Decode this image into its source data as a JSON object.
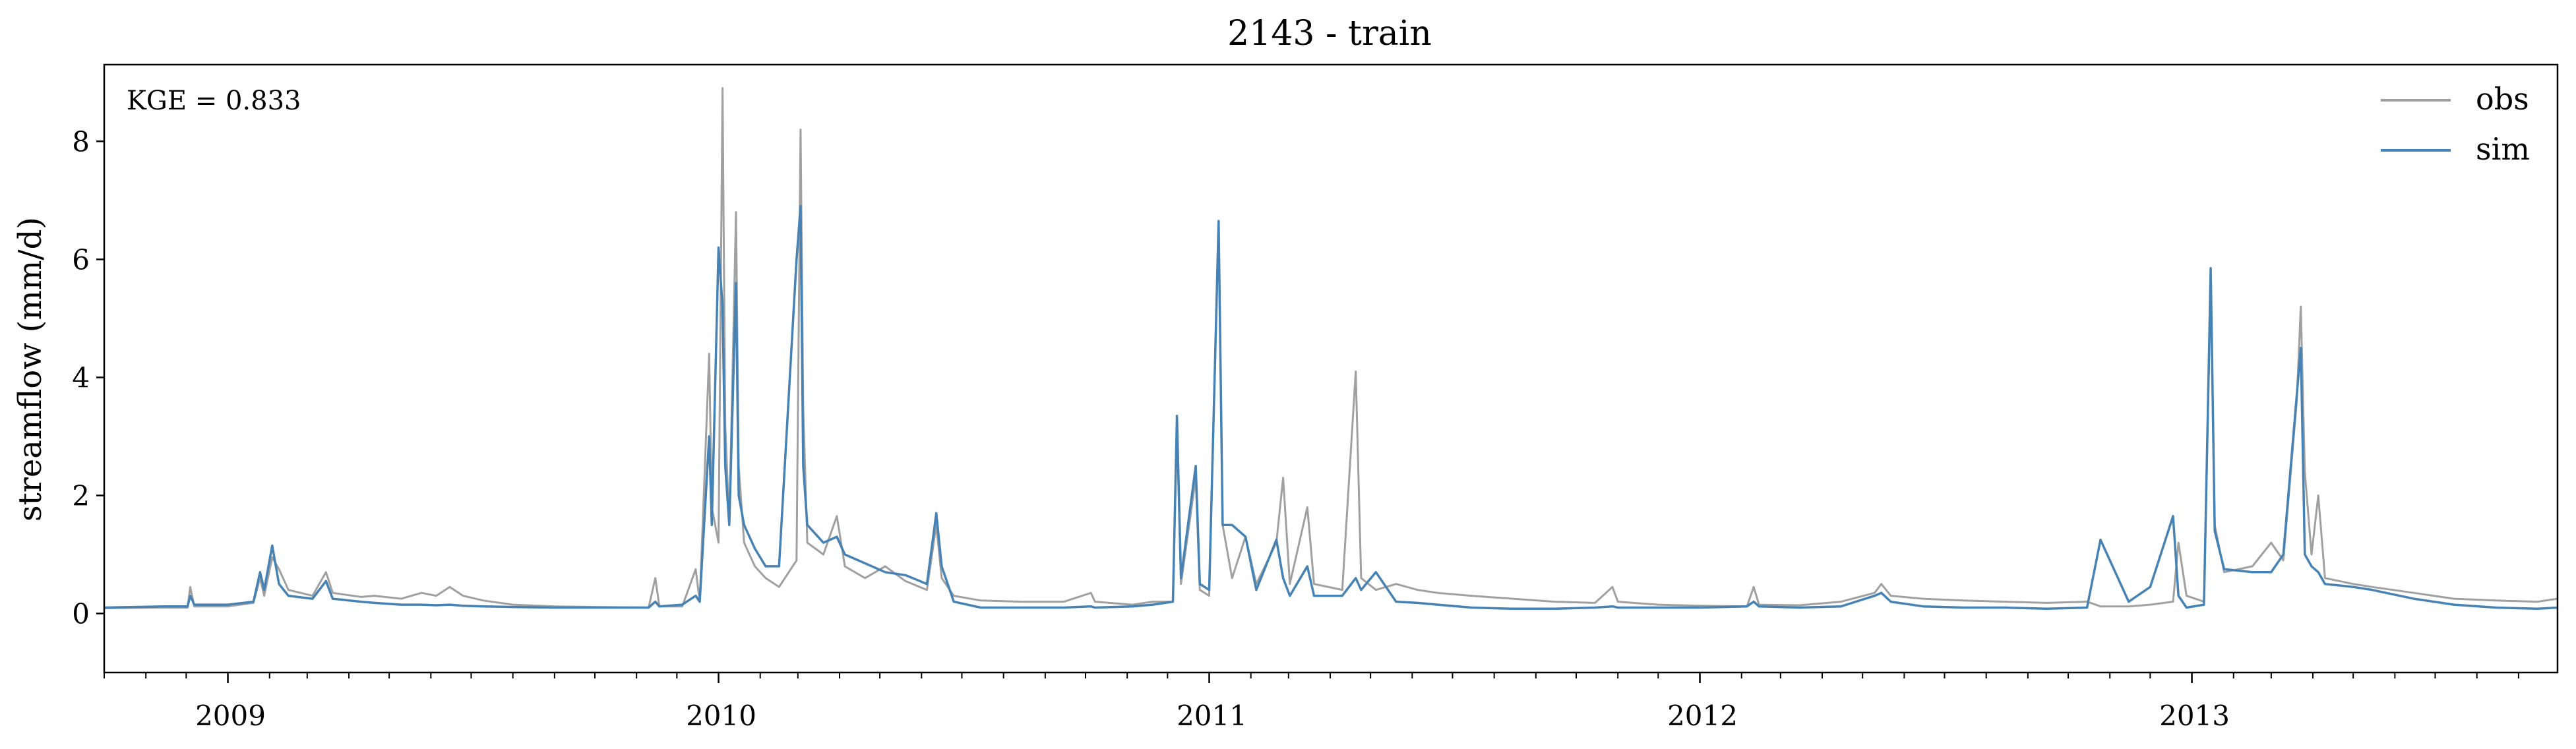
{
  "chart_data": {
    "type": "line",
    "title": "2143 - train",
    "xlabel": "",
    "ylabel": "streamflow (mm/d)",
    "annotation": "KGE = 0.833",
    "xlim": [
      "2008-10-01",
      "2013-09-30"
    ],
    "ylim": [
      -1,
      9.3
    ],
    "xticks": [
      {
        "date": "2009-01-01",
        "label": "2009"
      },
      {
        "date": "2010-01-01",
        "label": "2010"
      },
      {
        "date": "2011-01-01",
        "label": "2011"
      },
      {
        "date": "2012-01-01",
        "label": "2012"
      },
      {
        "date": "2013-01-01",
        "label": "2013"
      }
    ],
    "yticks": [
      0,
      2,
      4,
      6,
      8
    ],
    "grid": false,
    "legend_position": "top-right",
    "series": [
      {
        "name": "obs",
        "color": "#a0a0a0",
        "points": [
          [
            "2008-10-01",
            0.09
          ],
          [
            "2008-11-15",
            0.1
          ],
          [
            "2008-12-02",
            0.1
          ],
          [
            "2008-12-04",
            0.45
          ],
          [
            "2008-12-07",
            0.12
          ],
          [
            "2009-01-01",
            0.12
          ],
          [
            "2009-01-20",
            0.18
          ],
          [
            "2009-01-25",
            0.6
          ],
          [
            "2009-01-28",
            0.3
          ],
          [
            "2009-02-03",
            0.95
          ],
          [
            "2009-02-08",
            0.75
          ],
          [
            "2009-02-15",
            0.4
          ],
          [
            "2009-03-05",
            0.3
          ],
          [
            "2009-03-15",
            0.7
          ],
          [
            "2009-03-20",
            0.35
          ],
          [
            "2009-04-10",
            0.28
          ],
          [
            "2009-04-20",
            0.3
          ],
          [
            "2009-05-10",
            0.25
          ],
          [
            "2009-05-25",
            0.35
          ],
          [
            "2009-06-05",
            0.3
          ],
          [
            "2009-06-15",
            0.45
          ],
          [
            "2009-06-25",
            0.3
          ],
          [
            "2009-07-10",
            0.22
          ],
          [
            "2009-08-01",
            0.15
          ],
          [
            "2009-09-01",
            0.12
          ],
          [
            "2009-10-01",
            0.11
          ],
          [
            "2009-11-10",
            0.1
          ],
          [
            "2009-11-15",
            0.6
          ],
          [
            "2009-11-18",
            0.12
          ],
          [
            "2009-12-05",
            0.12
          ],
          [
            "2009-12-15",
            0.75
          ],
          [
            "2009-12-18",
            0.2
          ],
          [
            "2009-12-25",
            4.4
          ],
          [
            "2009-12-27",
            1.8
          ],
          [
            "2010-01-01",
            1.2
          ],
          [
            "2010-01-04",
            8.9
          ],
          [
            "2010-01-06",
            3.2
          ],
          [
            "2010-01-09",
            1.5
          ],
          [
            "2010-01-14",
            6.8
          ],
          [
            "2010-01-16",
            2.5
          ],
          [
            "2010-01-20",
            1.2
          ],
          [
            "2010-01-28",
            0.8
          ],
          [
            "2010-02-05",
            0.6
          ],
          [
            "2010-02-15",
            0.45
          ],
          [
            "2010-02-28",
            0.9
          ],
          [
            "2010-03-03",
            8.2
          ],
          [
            "2010-03-05",
            3.5
          ],
          [
            "2010-03-08",
            1.2
          ],
          [
            "2010-03-20",
            1.0
          ],
          [
            "2010-03-30",
            1.65
          ],
          [
            "2010-04-05",
            0.8
          ],
          [
            "2010-04-20",
            0.6
          ],
          [
            "2010-05-05",
            0.8
          ],
          [
            "2010-05-20",
            0.55
          ],
          [
            "2010-06-05",
            0.4
          ],
          [
            "2010-06-12",
            1.5
          ],
          [
            "2010-06-16",
            0.6
          ],
          [
            "2010-06-25",
            0.3
          ],
          [
            "2010-07-15",
            0.22
          ],
          [
            "2010-08-15",
            0.2
          ],
          [
            "2010-09-15",
            0.2
          ],
          [
            "2010-10-05",
            0.35
          ],
          [
            "2010-10-08",
            0.2
          ],
          [
            "2010-11-05",
            0.15
          ],
          [
            "2010-11-20",
            0.2
          ],
          [
            "2010-12-05",
            0.2
          ],
          [
            "2010-12-08",
            3.2
          ],
          [
            "2010-12-11",
            0.5
          ],
          [
            "2010-12-22",
            2.3
          ],
          [
            "2010-12-25",
            0.4
          ],
          [
            "2011-01-01",
            0.3
          ],
          [
            "2011-01-08",
            6.6
          ],
          [
            "2011-01-11",
            1.5
          ],
          [
            "2011-01-18",
            0.6
          ],
          [
            "2011-01-28",
            1.3
          ],
          [
            "2011-02-05",
            0.5
          ],
          [
            "2011-02-20",
            1.2
          ],
          [
            "2011-02-25",
            2.3
          ],
          [
            "2011-03-02",
            0.5
          ],
          [
            "2011-03-15",
            1.8
          ],
          [
            "2011-03-20",
            0.5
          ],
          [
            "2011-04-10",
            0.4
          ],
          [
            "2011-04-20",
            4.1
          ],
          [
            "2011-04-24",
            0.6
          ],
          [
            "2011-05-05",
            0.4
          ],
          [
            "2011-05-20",
            0.5
          ],
          [
            "2011-06-05",
            0.4
          ],
          [
            "2011-06-20",
            0.35
          ],
          [
            "2011-07-15",
            0.3
          ],
          [
            "2011-08-15",
            0.25
          ],
          [
            "2011-09-15",
            0.2
          ],
          [
            "2011-10-15",
            0.18
          ],
          [
            "2011-10-28",
            0.45
          ],
          [
            "2011-11-01",
            0.2
          ],
          [
            "2011-12-01",
            0.15
          ],
          [
            "2012-01-01",
            0.13
          ],
          [
            "2012-02-05",
            0.12
          ],
          [
            "2012-02-10",
            0.45
          ],
          [
            "2012-02-14",
            0.15
          ],
          [
            "2012-03-15",
            0.14
          ],
          [
            "2012-04-15",
            0.2
          ],
          [
            "2012-05-10",
            0.35
          ],
          [
            "2012-05-15",
            0.5
          ],
          [
            "2012-05-22",
            0.3
          ],
          [
            "2012-06-15",
            0.25
          ],
          [
            "2012-07-15",
            0.22
          ],
          [
            "2012-08-15",
            0.2
          ],
          [
            "2012-09-15",
            0.18
          ],
          [
            "2012-10-15",
            0.2
          ],
          [
            "2012-10-25",
            0.12
          ],
          [
            "2012-11-15",
            0.12
          ],
          [
            "2012-12-01",
            0.15
          ],
          [
            "2012-12-18",
            0.2
          ],
          [
            "2012-12-22",
            1.2
          ],
          [
            "2012-12-28",
            0.3
          ],
          [
            "2013-01-10",
            0.2
          ],
          [
            "2013-01-15",
            5.6
          ],
          [
            "2013-01-18",
            1.5
          ],
          [
            "2013-01-25",
            0.7
          ],
          [
            "2013-02-15",
            0.8
          ],
          [
            "2013-03-01",
            1.2
          ],
          [
            "2013-03-10",
            0.9
          ],
          [
            "2013-03-20",
            3.6
          ],
          [
            "2013-03-23",
            5.2
          ],
          [
            "2013-03-26",
            2.4
          ],
          [
            "2013-03-31",
            1.0
          ],
          [
            "2013-04-05",
            2.0
          ],
          [
            "2013-04-10",
            0.6
          ],
          [
            "2013-05-01",
            0.5
          ],
          [
            "2013-05-15",
            0.45
          ],
          [
            "2013-06-15",
            0.35
          ],
          [
            "2013-07-15",
            0.25
          ],
          [
            "2013-08-15",
            0.22
          ],
          [
            "2013-09-15",
            0.2
          ],
          [
            "2013-09-30",
            0.25
          ]
        ]
      },
      {
        "name": "sim",
        "color": "#4682b4",
        "points": [
          [
            "2008-10-01",
            0.1
          ],
          [
            "2008-11-15",
            0.12
          ],
          [
            "2008-12-02",
            0.12
          ],
          [
            "2008-12-04",
            0.3
          ],
          [
            "2008-12-07",
            0.15
          ],
          [
            "2009-01-01",
            0.15
          ],
          [
            "2009-01-20",
            0.2
          ],
          [
            "2009-01-25",
            0.7
          ],
          [
            "2009-01-28",
            0.4
          ],
          [
            "2009-02-03",
            1.15
          ],
          [
            "2009-02-08",
            0.5
          ],
          [
            "2009-02-15",
            0.3
          ],
          [
            "2009-03-05",
            0.25
          ],
          [
            "2009-03-15",
            0.55
          ],
          [
            "2009-03-20",
            0.25
          ],
          [
            "2009-04-10",
            0.2
          ],
          [
            "2009-04-20",
            0.18
          ],
          [
            "2009-05-10",
            0.15
          ],
          [
            "2009-05-25",
            0.15
          ],
          [
            "2009-06-05",
            0.14
          ],
          [
            "2009-06-15",
            0.15
          ],
          [
            "2009-06-25",
            0.13
          ],
          [
            "2009-07-10",
            0.12
          ],
          [
            "2009-08-01",
            0.11
          ],
          [
            "2009-09-01",
            0.1
          ],
          [
            "2009-10-01",
            0.1
          ],
          [
            "2009-11-10",
            0.1
          ],
          [
            "2009-11-15",
            0.2
          ],
          [
            "2009-11-18",
            0.12
          ],
          [
            "2009-12-05",
            0.15
          ],
          [
            "2009-12-15",
            0.3
          ],
          [
            "2009-12-18",
            0.2
          ],
          [
            "2009-12-25",
            3.0
          ],
          [
            "2009-12-27",
            1.5
          ],
          [
            "2010-01-01",
            6.2
          ],
          [
            "2010-01-04",
            5.2
          ],
          [
            "2010-01-06",
            2.5
          ],
          [
            "2010-01-09",
            1.5
          ],
          [
            "2010-01-14",
            5.6
          ],
          [
            "2010-01-16",
            2.0
          ],
          [
            "2010-01-20",
            1.5
          ],
          [
            "2010-01-28",
            1.1
          ],
          [
            "2010-02-05",
            0.8
          ],
          [
            "2010-02-15",
            0.8
          ],
          [
            "2010-02-28",
            6.0
          ],
          [
            "2010-03-03",
            6.9
          ],
          [
            "2010-03-05",
            2.5
          ],
          [
            "2010-03-08",
            1.5
          ],
          [
            "2010-03-20",
            1.2
          ],
          [
            "2010-03-30",
            1.3
          ],
          [
            "2010-04-05",
            1.0
          ],
          [
            "2010-04-20",
            0.85
          ],
          [
            "2010-05-05",
            0.7
          ],
          [
            "2010-05-20",
            0.65
          ],
          [
            "2010-06-05",
            0.5
          ],
          [
            "2010-06-12",
            1.7
          ],
          [
            "2010-06-16",
            0.8
          ],
          [
            "2010-06-25",
            0.2
          ],
          [
            "2010-07-15",
            0.1
          ],
          [
            "2010-08-15",
            0.1
          ],
          [
            "2010-09-15",
            0.1
          ],
          [
            "2010-10-05",
            0.12
          ],
          [
            "2010-10-08",
            0.1
          ],
          [
            "2010-11-05",
            0.12
          ],
          [
            "2010-11-20",
            0.15
          ],
          [
            "2010-12-05",
            0.2
          ],
          [
            "2010-12-08",
            3.35
          ],
          [
            "2010-12-11",
            0.6
          ],
          [
            "2010-12-22",
            2.5
          ],
          [
            "2010-12-25",
            0.5
          ],
          [
            "2011-01-01",
            0.4
          ],
          [
            "2011-01-08",
            6.65
          ],
          [
            "2011-01-11",
            1.5
          ],
          [
            "2011-01-18",
            1.5
          ],
          [
            "2011-01-28",
            1.3
          ],
          [
            "2011-02-05",
            0.4
          ],
          [
            "2011-02-20",
            1.25
          ],
          [
            "2011-02-25",
            0.6
          ],
          [
            "2011-03-02",
            0.3
          ],
          [
            "2011-03-15",
            0.8
          ],
          [
            "2011-03-20",
            0.3
          ],
          [
            "2011-04-10",
            0.3
          ],
          [
            "2011-04-20",
            0.6
          ],
          [
            "2011-04-24",
            0.4
          ],
          [
            "2011-05-05",
            0.7
          ],
          [
            "2011-05-20",
            0.2
          ],
          [
            "2011-06-05",
            0.18
          ],
          [
            "2011-06-20",
            0.15
          ],
          [
            "2011-07-15",
            0.1
          ],
          [
            "2011-08-15",
            0.08
          ],
          [
            "2011-09-15",
            0.08
          ],
          [
            "2011-10-15",
            0.1
          ],
          [
            "2011-10-28",
            0.12
          ],
          [
            "2011-11-01",
            0.1
          ],
          [
            "2011-12-01",
            0.1
          ],
          [
            "2012-01-01",
            0.1
          ],
          [
            "2012-02-05",
            0.12
          ],
          [
            "2012-02-10",
            0.2
          ],
          [
            "2012-02-14",
            0.12
          ],
          [
            "2012-03-15",
            0.1
          ],
          [
            "2012-04-15",
            0.12
          ],
          [
            "2012-05-10",
            0.3
          ],
          [
            "2012-05-15",
            0.35
          ],
          [
            "2012-05-22",
            0.2
          ],
          [
            "2012-06-15",
            0.12
          ],
          [
            "2012-07-15",
            0.1
          ],
          [
            "2012-08-15",
            0.1
          ],
          [
            "2012-09-15",
            0.08
          ],
          [
            "2012-10-15",
            0.1
          ],
          [
            "2012-10-25",
            1.25
          ],
          [
            "2012-11-15",
            0.2
          ],
          [
            "2012-12-01",
            0.45
          ],
          [
            "2012-12-18",
            1.65
          ],
          [
            "2012-12-22",
            0.3
          ],
          [
            "2012-12-28",
            0.1
          ],
          [
            "2013-01-10",
            0.15
          ],
          [
            "2013-01-15",
            5.85
          ],
          [
            "2013-01-18",
            1.4
          ],
          [
            "2013-01-25",
            0.75
          ],
          [
            "2013-02-15",
            0.7
          ],
          [
            "2013-03-01",
            0.7
          ],
          [
            "2013-03-10",
            1.0
          ],
          [
            "2013-03-20",
            3.7
          ],
          [
            "2013-03-23",
            4.5
          ],
          [
            "2013-03-26",
            1.0
          ],
          [
            "2013-03-31",
            0.8
          ],
          [
            "2013-04-05",
            0.7
          ],
          [
            "2013-04-10",
            0.5
          ],
          [
            "2013-05-01",
            0.45
          ],
          [
            "2013-05-15",
            0.4
          ],
          [
            "2013-06-15",
            0.25
          ],
          [
            "2013-07-15",
            0.15
          ],
          [
            "2013-08-15",
            0.1
          ],
          [
            "2013-09-15",
            0.08
          ],
          [
            "2013-09-30",
            0.1
          ]
        ]
      }
    ]
  }
}
